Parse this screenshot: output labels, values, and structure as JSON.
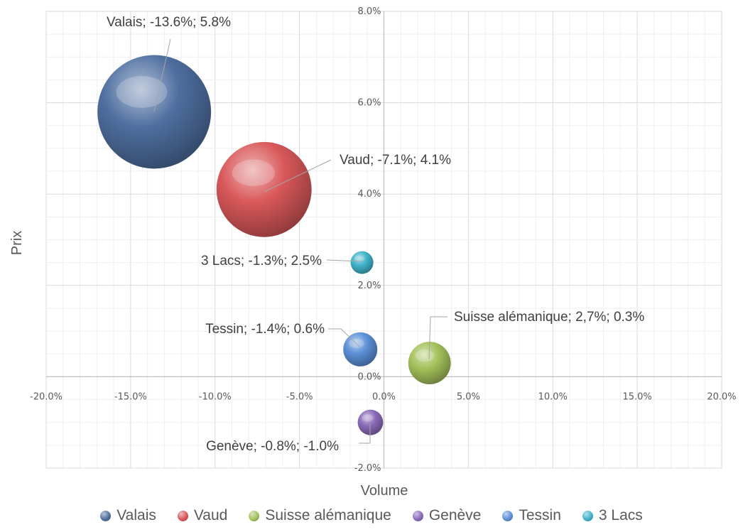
{
  "chart_data": {
    "type": "bubble",
    "xlabel": "Volume",
    "ylabel": "Prix",
    "xlim": [
      -20,
      20
    ],
    "ylim": [
      -2,
      8
    ],
    "x_ticks": [
      "-20.0%",
      "-15.0%",
      "-10.0%",
      "-5.0%",
      "0.0%",
      "5.0%",
      "10.0%",
      "15.0%",
      "20.0%"
    ],
    "y_ticks": [
      "-2.0%",
      "0.0%",
      "2.0%",
      "4.0%",
      "6.0%",
      "8.0%"
    ],
    "grid": true,
    "legend_position": "bottom",
    "series": [
      {
        "name": "Valais",
        "x": -13.6,
        "y": 5.8,
        "size": 100,
        "color": "#4f6fa0",
        "label": "Valais; -13.6%; 5.8%"
      },
      {
        "name": "Vaud",
        "x": -7.1,
        "y": 4.1,
        "size": 70,
        "color": "#d9585a",
        "label": "Vaud; -7.1%; 4.1%"
      },
      {
        "name": "Suisse alémanique",
        "x": 2.7,
        "y": 0.3,
        "size": 14,
        "color": "#a3c15a",
        "label": "Suisse alémanique; 2,7%; 0.3%"
      },
      {
        "name": "Genève",
        "x": -0.8,
        "y": -1.0,
        "size": 5,
        "color": "#8a6ab8",
        "label": "Genève; -0.8%; -1.0%"
      },
      {
        "name": "Tessin",
        "x": -1.4,
        "y": 0.6,
        "size": 9,
        "color": "#5b8fd6",
        "label": "Tessin; -1.4%; 0.6%"
      },
      {
        "name": "3 Lacs",
        "x": -1.3,
        "y": 2.5,
        "size": 4,
        "color": "#3fb3c9",
        "label": "3 Lacs; -1.3%; 2.5%"
      }
    ]
  }
}
